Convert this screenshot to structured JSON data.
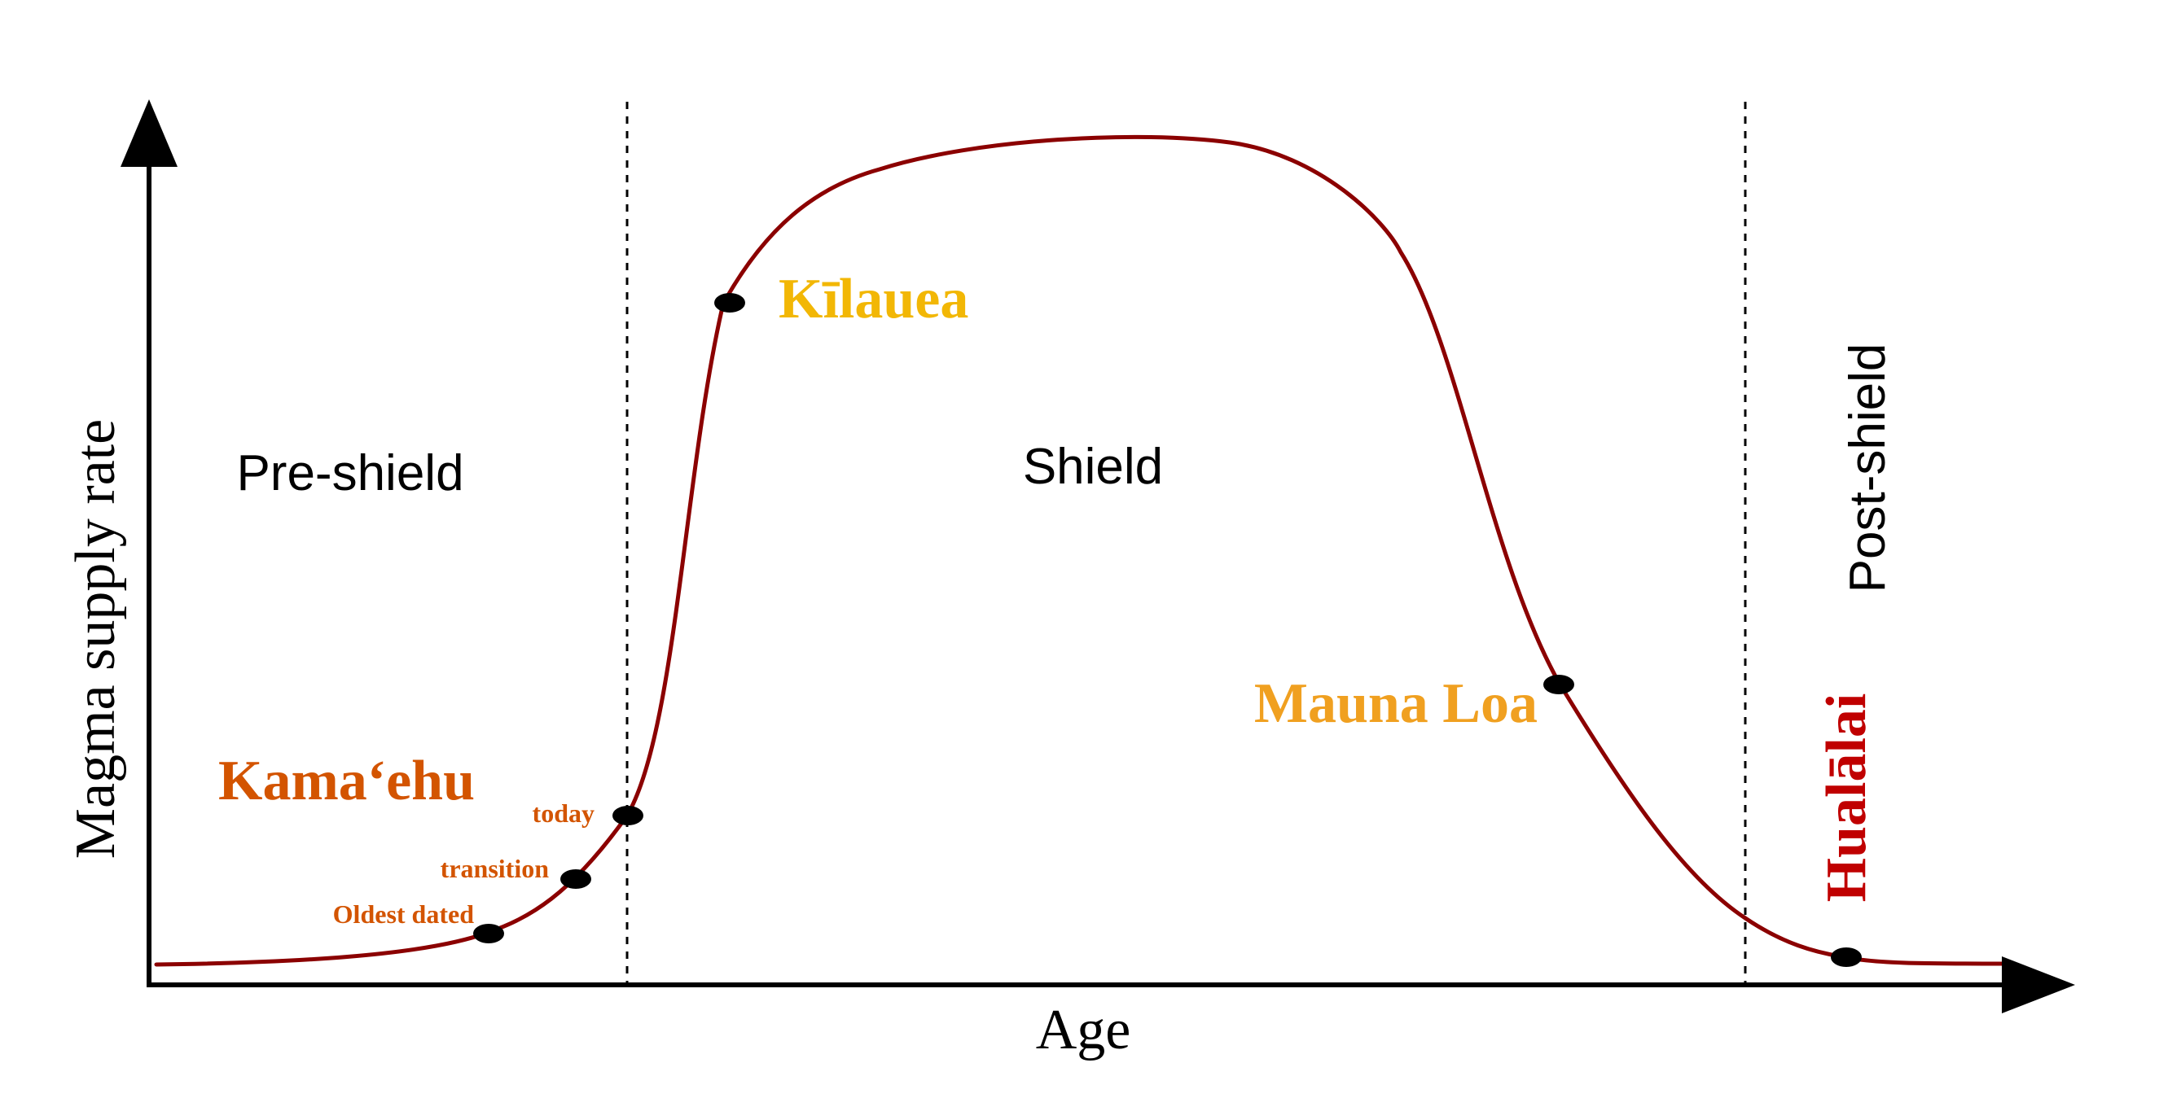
{
  "axes": {
    "y_label": "Magma supply rate",
    "x_label": "Age"
  },
  "stages": {
    "pre_shield": "Pre-shield",
    "shield": "Shield",
    "post_shield": "Post-shield"
  },
  "volcanoes": {
    "kilauea": "Kīlauea",
    "mauna_loa": "Mauna Loa",
    "hualalai": "Hualālai",
    "kamaehu": "Kamaʻehu"
  },
  "kamaehu_points": {
    "today": "today",
    "transition": "transition",
    "oldest_dated": "Oldest dated"
  },
  "colors": {
    "curve": "#8b0000",
    "axis": "#000000",
    "kilauea": "#f2b705",
    "mauna_loa": "#f0a020",
    "hualalai": "#c00000",
    "kamaehu": "#d35400",
    "kamaehu_points": "#d35400",
    "marker": "#000000"
  }
}
